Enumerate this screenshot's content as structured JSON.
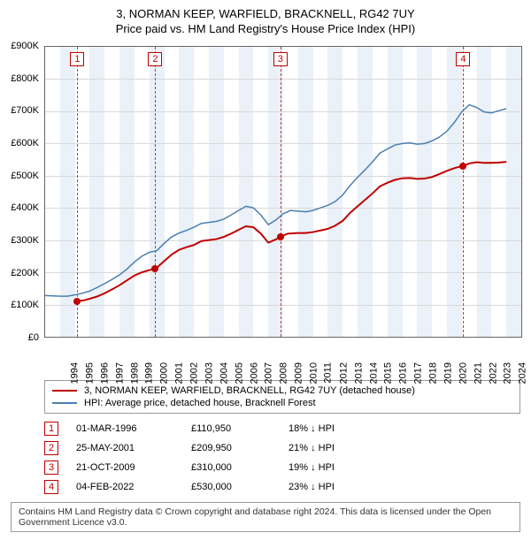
{
  "title": {
    "line1": "3, NORMAN KEEP, WARFIELD, BRACKNELL, RG42 7UY",
    "line2": "Price paid vs. HM Land Registry's House Price Index (HPI)"
  },
  "chart": {
    "type": "line",
    "background_color": "#ffffff",
    "band_color": "#eaf1f8",
    "grid_color": "#d9d9d9",
    "axis_color": "#666666",
    "x_years": [
      1994,
      1995,
      1996,
      1997,
      1998,
      1999,
      2000,
      2001,
      2002,
      2003,
      2004,
      2005,
      2006,
      2007,
      2008,
      2009,
      2010,
      2011,
      2012,
      2013,
      2014,
      2015,
      2016,
      2017,
      2018,
      2019,
      2020,
      2021,
      2022,
      2023,
      2024,
      2025
    ],
    "x_min": 1994,
    "x_max": 2026,
    "y_min": 0,
    "y_max": 900000,
    "y_ticks": [
      0,
      100000,
      200000,
      300000,
      400000,
      500000,
      600000,
      700000,
      800000,
      900000
    ],
    "y_tick_labels": [
      "£0",
      "£100K",
      "£200K",
      "£300K",
      "£400K",
      "£500K",
      "£600K",
      "£700K",
      "£800K",
      "£900K"
    ],
    "dash_line_color": "#c43a3a",
    "series": {
      "price_paid": {
        "label": "3, NORMAN KEEP, WARFIELD, BRACKNELL, RG42 7UY (detached house)",
        "color": "#c00000",
        "line_width": 2,
        "points": [
          [
            1996.17,
            110950
          ],
          [
            1996.6,
            113000
          ],
          [
            1997.0,
            118000
          ],
          [
            1997.5,
            125000
          ],
          [
            1998.0,
            135000
          ],
          [
            1998.5,
            147000
          ],
          [
            1999.0,
            160000
          ],
          [
            1999.5,
            175000
          ],
          [
            2000.0,
            190000
          ],
          [
            2000.5,
            200000
          ],
          [
            2001.0,
            207000
          ],
          [
            2001.4,
            209950
          ],
          [
            2002.0,
            235000
          ],
          [
            2002.5,
            255000
          ],
          [
            2003.0,
            270000
          ],
          [
            2003.5,
            278000
          ],
          [
            2004.0,
            285000
          ],
          [
            2004.5,
            297000
          ],
          [
            2005.0,
            300000
          ],
          [
            2005.5,
            303000
          ],
          [
            2006.0,
            310000
          ],
          [
            2006.5,
            320000
          ],
          [
            2007.0,
            332000
          ],
          [
            2007.5,
            343000
          ],
          [
            2008.0,
            340000
          ],
          [
            2008.5,
            320000
          ],
          [
            2009.0,
            292000
          ],
          [
            2009.5,
            302000
          ],
          [
            2009.81,
            310000
          ],
          [
            2010.3,
            320000
          ],
          [
            2011.0,
            322000
          ],
          [
            2011.5,
            322000
          ],
          [
            2012.0,
            325000
          ],
          [
            2012.5,
            330000
          ],
          [
            2013.0,
            335000
          ],
          [
            2013.5,
            345000
          ],
          [
            2014.0,
            360000
          ],
          [
            2014.5,
            385000
          ],
          [
            2015.0,
            405000
          ],
          [
            2015.5,
            425000
          ],
          [
            2016.0,
            445000
          ],
          [
            2016.5,
            467000
          ],
          [
            2017.0,
            478000
          ],
          [
            2017.5,
            487000
          ],
          [
            2018.0,
            492000
          ],
          [
            2018.5,
            493000
          ],
          [
            2019.0,
            490000
          ],
          [
            2019.5,
            491000
          ],
          [
            2020.0,
            496000
          ],
          [
            2020.5,
            505000
          ],
          [
            2021.0,
            515000
          ],
          [
            2021.6,
            525000
          ],
          [
            2022.1,
            530000
          ],
          [
            2022.5,
            538000
          ],
          [
            2023.0,
            542000
          ],
          [
            2023.5,
            540000
          ],
          [
            2024.0,
            540000
          ],
          [
            2024.5,
            541000
          ],
          [
            2025.0,
            543000
          ]
        ],
        "markers": [
          {
            "n": "1",
            "x": 1996.17,
            "y": 110950
          },
          {
            "n": "2",
            "x": 2001.4,
            "y": 209950
          },
          {
            "n": "3",
            "x": 2009.81,
            "y": 310000
          },
          {
            "n": "4",
            "x": 2022.1,
            "y": 530000
          }
        ]
      },
      "hpi": {
        "label": "HPI: Average price, detached house, Bracknell Forest",
        "color": "#4a7fb0",
        "line_width": 1.5,
        "points": [
          [
            1994.0,
            128000
          ],
          [
            1994.5,
            127000
          ],
          [
            1995.0,
            126000
          ],
          [
            1995.5,
            126000
          ],
          [
            1996.0,
            130000
          ],
          [
            1996.5,
            135000
          ],
          [
            1997.0,
            142000
          ],
          [
            1997.5,
            153000
          ],
          [
            1998.0,
            165000
          ],
          [
            1998.5,
            178000
          ],
          [
            1999.0,
            192000
          ],
          [
            1999.5,
            210000
          ],
          [
            2000.0,
            232000
          ],
          [
            2000.5,
            250000
          ],
          [
            2001.0,
            262000
          ],
          [
            2001.5,
            267000
          ],
          [
            2002.0,
            290000
          ],
          [
            2002.5,
            310000
          ],
          [
            2003.0,
            322000
          ],
          [
            2003.5,
            330000
          ],
          [
            2004.0,
            340000
          ],
          [
            2004.5,
            352000
          ],
          [
            2005.0,
            355000
          ],
          [
            2005.5,
            358000
          ],
          [
            2006.0,
            365000
          ],
          [
            2006.5,
            378000
          ],
          [
            2007.0,
            392000
          ],
          [
            2007.5,
            405000
          ],
          [
            2008.0,
            400000
          ],
          [
            2008.5,
            378000
          ],
          [
            2009.0,
            348000
          ],
          [
            2009.5,
            362000
          ],
          [
            2010.0,
            382000
          ],
          [
            2010.5,
            392000
          ],
          [
            2011.0,
            390000
          ],
          [
            2011.5,
            388000
          ],
          [
            2012.0,
            392000
          ],
          [
            2012.5,
            400000
          ],
          [
            2013.0,
            408000
          ],
          [
            2013.5,
            420000
          ],
          [
            2014.0,
            440000
          ],
          [
            2014.5,
            470000
          ],
          [
            2015.0,
            495000
          ],
          [
            2015.5,
            518000
          ],
          [
            2016.0,
            543000
          ],
          [
            2016.5,
            570000
          ],
          [
            2017.0,
            583000
          ],
          [
            2017.5,
            595000
          ],
          [
            2018.0,
            600000
          ],
          [
            2018.5,
            602000
          ],
          [
            2019.0,
            598000
          ],
          [
            2019.5,
            600000
          ],
          [
            2020.0,
            608000
          ],
          [
            2020.5,
            620000
          ],
          [
            2021.0,
            638000
          ],
          [
            2021.5,
            665000
          ],
          [
            2022.0,
            698000
          ],
          [
            2022.5,
            720000
          ],
          [
            2023.0,
            712000
          ],
          [
            2023.5,
            698000
          ],
          [
            2024.0,
            695000
          ],
          [
            2024.5,
            702000
          ],
          [
            2025.0,
            708000
          ]
        ]
      }
    }
  },
  "legend": {
    "items": [
      {
        "key": "price_paid"
      },
      {
        "key": "hpi"
      }
    ]
  },
  "sales": [
    {
      "n": "1",
      "date": "01-MAR-1996",
      "price": "£110,950",
      "diff": "18% ↓ HPI"
    },
    {
      "n": "2",
      "date": "25-MAY-2001",
      "price": "£209,950",
      "diff": "21% ↓ HPI"
    },
    {
      "n": "3",
      "date": "21-OCT-2009",
      "price": "£310,000",
      "diff": "19% ↓ HPI"
    },
    {
      "n": "4",
      "date": "04-FEB-2022",
      "price": "£530,000",
      "diff": "23% ↓ HPI"
    }
  ],
  "attribution": "Contains HM Land Registry data © Crown copyright and database right 2024. This data is licensed under the Open Government Licence v3.0."
}
